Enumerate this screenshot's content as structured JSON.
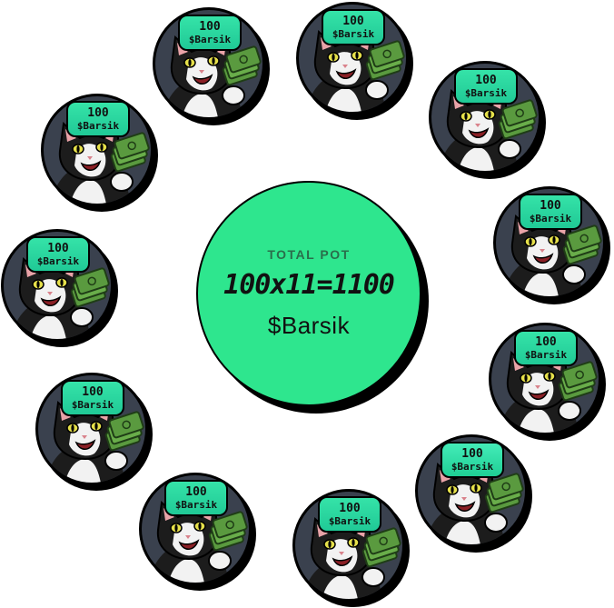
{
  "pot": {
    "label": "TOTAL POT",
    "formula": "100x11=1100",
    "token": "$Barsik"
  },
  "coins": [
    {
      "amount": "100",
      "token": "$Barsik"
    },
    {
      "amount": "100",
      "token": "$Barsik"
    },
    {
      "amount": "100",
      "token": "$Barsik"
    },
    {
      "amount": "100",
      "token": "$Barsik"
    },
    {
      "amount": "100",
      "token": "$Barsik"
    },
    {
      "amount": "100",
      "token": "$Barsik"
    },
    {
      "amount": "100",
      "token": "$Barsik"
    },
    {
      "amount": "100",
      "token": "$Barsik"
    },
    {
      "amount": "100",
      "token": "$Barsik"
    },
    {
      "amount": "100",
      "token": "$Barsik"
    },
    {
      "amount": "100",
      "token": "$Barsik"
    }
  ],
  "colors": {
    "pot_fill": "#2ee68e",
    "coin_bg": "#3a414e",
    "bubble": "#2fdca2",
    "cash": "#4f8f3a"
  },
  "icons": [
    "cat-with-cash-icon"
  ]
}
